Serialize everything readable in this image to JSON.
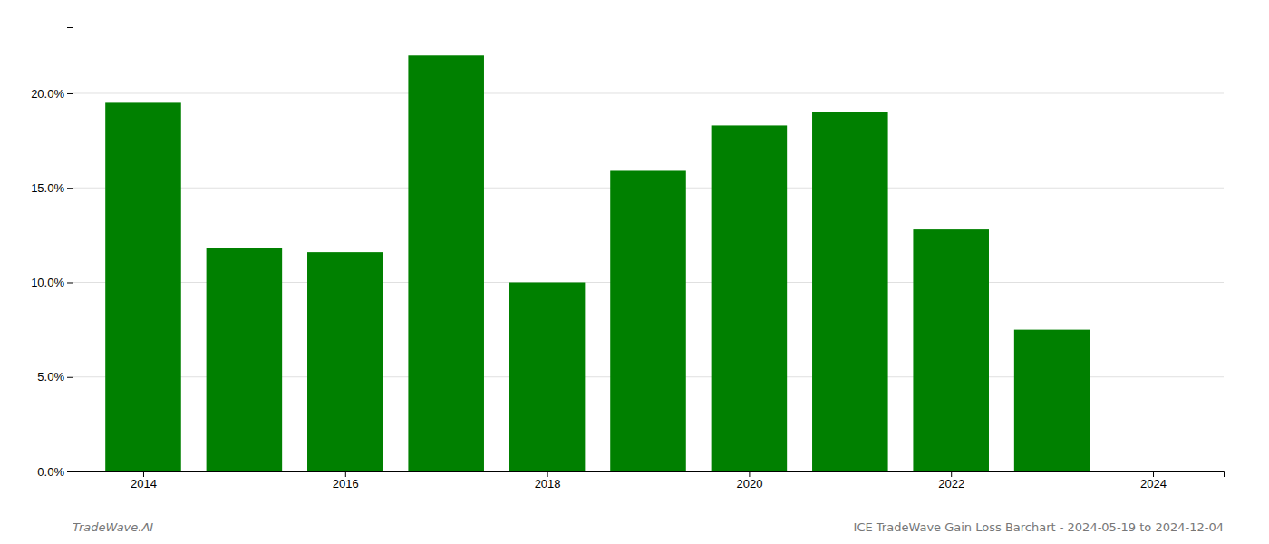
{
  "chart_data": {
    "type": "bar",
    "x": [
      2014,
      2015,
      2016,
      2017,
      2018,
      2019,
      2020,
      2021,
      2022,
      2023
    ],
    "values": [
      0.195,
      0.118,
      0.116,
      0.22,
      0.1,
      0.159,
      0.183,
      0.19,
      0.128,
      0.075
    ],
    "color": "#008000",
    "xlim": [
      2013.3,
      2024.7
    ],
    "xticks": [
      2014,
      2016,
      2018,
      2020,
      2022,
      2024
    ],
    "ylim": [
      0,
      0.235
    ],
    "yticks": [
      {
        "value": 0.0,
        "label": "0.0%"
      },
      {
        "value": 0.05,
        "label": "5.0%"
      },
      {
        "value": 0.1,
        "label": "10.0%"
      },
      {
        "value": 0.15,
        "label": "15.0%"
      },
      {
        "value": 0.2,
        "label": "20.0%"
      }
    ],
    "grid": true,
    "annotations": [
      "TradeWave.AI",
      "ICE TradeWave Gain Loss Barchart - 2024-05-19 to 2024-12-04"
    ]
  }
}
